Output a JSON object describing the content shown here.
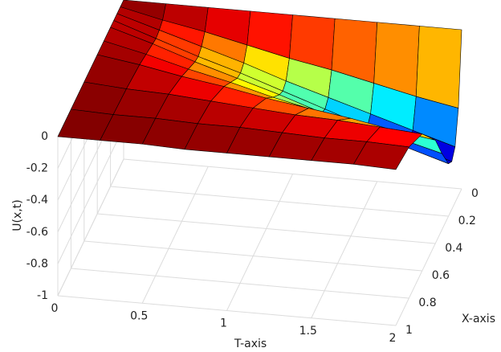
{
  "chart_data": {
    "type": "surface",
    "xlabel": "T-axis",
    "ylabel": "X-axis",
    "zlabel": "U(x,t)",
    "colormap": "jet",
    "grid": true,
    "edge_color": "#000000",
    "t": [
      0,
      0.25,
      0.5,
      0.75,
      1,
      1.25,
      1.5,
      1.75,
      2
    ],
    "x": [
      0,
      0.05,
      0.1,
      0.15,
      0.2,
      0.3,
      0.4,
      0.6,
      0.8,
      1
    ],
    "z": [
      [
        0,
        0,
        0,
        0,
        0,
        0,
        0,
        0,
        0,
        0
      ],
      [
        0,
        -0.06,
        -0.08,
        -0.09,
        -0.08,
        -0.06,
        -0.04,
        -0.02,
        -0.01,
        0
      ],
      [
        0,
        -0.11,
        -0.16,
        -0.18,
        -0.17,
        -0.13,
        -0.09,
        -0.03,
        -0.01,
        0
      ],
      [
        0,
        -0.17,
        -0.24,
        -0.26,
        -0.25,
        -0.19,
        -0.13,
        -0.05,
        -0.02,
        -0.01
      ],
      [
        0,
        -0.23,
        -0.33,
        -0.35,
        -0.33,
        -0.26,
        -0.18,
        -0.07,
        -0.02,
        -0.01
      ],
      [
        0,
        -0.28,
        -0.41,
        -0.44,
        -0.42,
        -0.32,
        -0.22,
        -0.09,
        -0.03,
        -0.01
      ],
      [
        0,
        -0.34,
        -0.49,
        -0.53,
        -0.5,
        -0.39,
        -0.26,
        -0.1,
        -0.04,
        -0.01
      ],
      [
        0,
        -0.4,
        -0.57,
        -0.61,
        -0.59,
        -0.45,
        -0.31,
        -0.12,
        -0.04,
        -0.01
      ],
      [
        0,
        -0.45,
        -0.65,
        -0.7,
        -0.67,
        -0.52,
        -0.35,
        -0.14,
        -0.05,
        -0.02
      ]
    ],
    "tlim": [
      0,
      2
    ],
    "tticks": [
      0,
      0.5,
      1,
      1.5,
      2
    ],
    "xlim": [
      0,
      1
    ],
    "xticks": [
      0,
      0.2,
      0.4,
      0.6,
      0.8,
      1
    ],
    "zlim": [
      -1,
      0
    ],
    "zticks": [
      -1,
      -0.8,
      -0.6,
      -0.4,
      -0.2,
      0
    ]
  }
}
